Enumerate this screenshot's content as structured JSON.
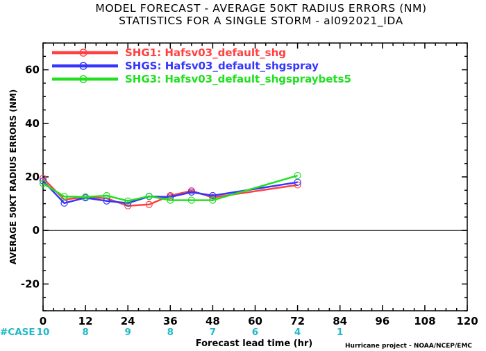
{
  "chart_data": {
    "type": "line",
    "title": "MODEL FORECAST - AVERAGE 50KT RADIUS ERRORS (NM)",
    "subtitle": "STATISTICS FOR A SINGLE STORM - al092021_IDA",
    "xlabel": "Forecast lead time (hr)",
    "ylabel": "AVERAGE 50KT RADIUS ERRORS (NM)",
    "xlim": [
      0,
      120
    ],
    "ylim": [
      -30,
      70
    ],
    "x_ticks": [
      0,
      12,
      24,
      36,
      48,
      60,
      72,
      84,
      96,
      108,
      120
    ],
    "y_ticks": [
      -20,
      0,
      20,
      40,
      60
    ],
    "zero_line": true,
    "legend_position": "top-left",
    "series": [
      {
        "name": "SHG1: Hafsv03_default_shg",
        "color": "#ff4040",
        "x": [
          0,
          6,
          12,
          18,
          24,
          30,
          36,
          42,
          48,
          72
        ],
        "y": [
          19.5,
          11.5,
          12.5,
          12,
          9.2,
          9.7,
          13,
          14.8,
          12.3,
          17
        ]
      },
      {
        "name": "SHGS: Hafsv03_default_shgspray",
        "color": "#3535ff",
        "x": [
          0,
          6,
          12,
          18,
          24,
          30,
          36,
          42,
          48,
          72
        ],
        "y": [
          18.5,
          10.2,
          12.2,
          11,
          10.2,
          12.7,
          12.5,
          14.3,
          13,
          18
        ]
      },
      {
        "name": "SHG3: Hafsv03_default_shgspraybets5",
        "color": "#20e020",
        "x": [
          0,
          6,
          12,
          18,
          24,
          30,
          36,
          42,
          48,
          72
        ],
        "y": [
          17.5,
          12.7,
          12.5,
          13,
          11,
          12.8,
          11.3,
          11.3,
          11.3,
          20.5
        ]
      }
    ],
    "cases": {
      "label": "#CASE",
      "x": [
        0,
        12,
        24,
        36,
        48,
        60,
        72,
        84
      ],
      "values": [
        "10",
        "8",
        "9",
        "8",
        "7",
        "6",
        "4",
        "1"
      ]
    },
    "credit": "Hurricane project - NOAA/NCEP/EMC"
  }
}
